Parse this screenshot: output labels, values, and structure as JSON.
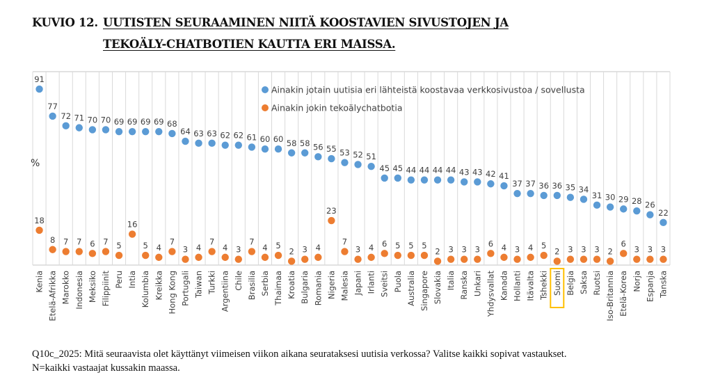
{
  "title": {
    "prefix": "KUVIO 12.",
    "line1": "UUTISTEN SEURAAMINEN NIITÄ KOOSTAVIEN SIVUSTOJEN JA",
    "line2": "TEKOÄLY-CHATBOTIEN KAUTTA ERI MAISSA."
  },
  "footnote": {
    "line1": "Q10c_2025: Mitä seuraavista olet käyttänyt viimeisen viikon aikana seurataksesi uutisia verkossa? Valitse kaikki sopivat vastaukset.",
    "line2": "N=kaikki vastaajat kussakin maassa."
  },
  "colors": {
    "aggregator": "#5B9BD5",
    "chatbot": "#ED7D31",
    "highlight": "#FFC000",
    "grid": "#D9D9D9"
  },
  "chart_data": {
    "type": "scatter",
    "title": "UUTISTEN SEURAAMINEN NIITÄ KOOSTAVIEN SIVUSTOJEN JA TEKOÄLY-CHATBOTIEN KAUTTA ERI MAISSA.",
    "xlabel": "",
    "ylabel": "%",
    "ylim": [
      0,
      100
    ],
    "grid": "vertical",
    "legend_position": "top-right",
    "highlighted_category": "Suomi",
    "categories": [
      "Kenia",
      "Etelä-Afrikka",
      "Marokko",
      "Indonesia",
      "Meksiko",
      "Filippiinit",
      "Peru",
      "Intia",
      "Kolumbia",
      "Kreikka",
      "Hong Kong",
      "Portugali",
      "Taiwan",
      "Turkki",
      "Argentiina",
      "Chile",
      "Brasilia",
      "Serbia",
      "Thaimaa",
      "Kroatia",
      "Bulgaria",
      "Romania",
      "Nigeria",
      "Malesia",
      "Japani",
      "Irlanti",
      "Sveitsi",
      "Puola",
      "Australia",
      "Singapore",
      "Slovakia",
      "Italia",
      "Ranska",
      "Unkari",
      "Yhdysvallat",
      "Kanada",
      "Hollanti",
      "Itävalta",
      "Tshekki",
      "Suomi",
      "Belgia",
      "Saksa",
      "Ruotsi",
      "Iso-Britannia",
      "Etelä-Korea",
      "Norja",
      "Espanja",
      "Tanska"
    ],
    "series": [
      {
        "name": "Ainakin jotain uutisia eri lähteistä koostavaa verkkosivustoa / sovellusta",
        "color": "#5B9BD5",
        "values": [
          91,
          77,
          72,
          71,
          70,
          70,
          69,
          69,
          69,
          69,
          68,
          64,
          63,
          63,
          62,
          62,
          61,
          60,
          60,
          58,
          58,
          56,
          55,
          53,
          52,
          51,
          45,
          45,
          44,
          44,
          44,
          44,
          43,
          43,
          42,
          41,
          37,
          37,
          36,
          36,
          35,
          34,
          31,
          30,
          29,
          28,
          26,
          22
        ]
      },
      {
        "name": "Ainakin jokin tekoälychatbotia",
        "color": "#ED7D31",
        "values": [
          18,
          8,
          7,
          7,
          6,
          7,
          5,
          16,
          5,
          4,
          7,
          3,
          4,
          7,
          4,
          3,
          7,
          4,
          5,
          2,
          3,
          4,
          23,
          7,
          3,
          4,
          6,
          5,
          5,
          5,
          2,
          3,
          3,
          3,
          6,
          4,
          3,
          4,
          5,
          2,
          3,
          3,
          3,
          2,
          6,
          3,
          3,
          3
        ]
      }
    ]
  }
}
